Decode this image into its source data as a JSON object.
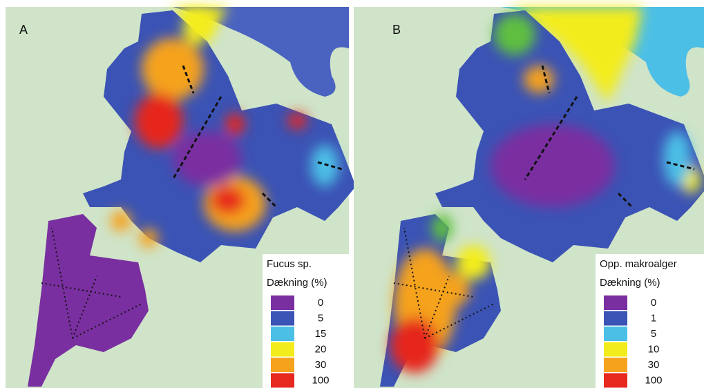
{
  "panels": [
    {
      "label": "A",
      "legend": {
        "title": "Fucus sp.",
        "subtitle": "Dækning (%)",
        "items": [
          {
            "label": "0",
            "color": "#7a2fa0"
          },
          {
            "label": "5",
            "color": "#3b53b4"
          },
          {
            "label": "15",
            "color": "#4cbfe6"
          },
          {
            "label": "20",
            "color": "#f3ec1c"
          },
          {
            "label": "30",
            "color": "#f5a21d"
          },
          {
            "label": "100",
            "color": "#e6281f"
          }
        ]
      }
    },
    {
      "label": "B",
      "legend": {
        "title": "Opp. makroalger",
        "subtitle": "Dækning (%)",
        "items": [
          {
            "label": "0",
            "color": "#7a2fa0"
          },
          {
            "label": "1",
            "color": "#3b53b4"
          },
          {
            "label": "5",
            "color": "#4cbfe6"
          },
          {
            "label": "10",
            "color": "#f3ec1c"
          },
          {
            "label": "30",
            "color": "#f5a21d"
          },
          {
            "label": "100",
            "color": "#e6281f"
          }
        ]
      }
    }
  ]
}
